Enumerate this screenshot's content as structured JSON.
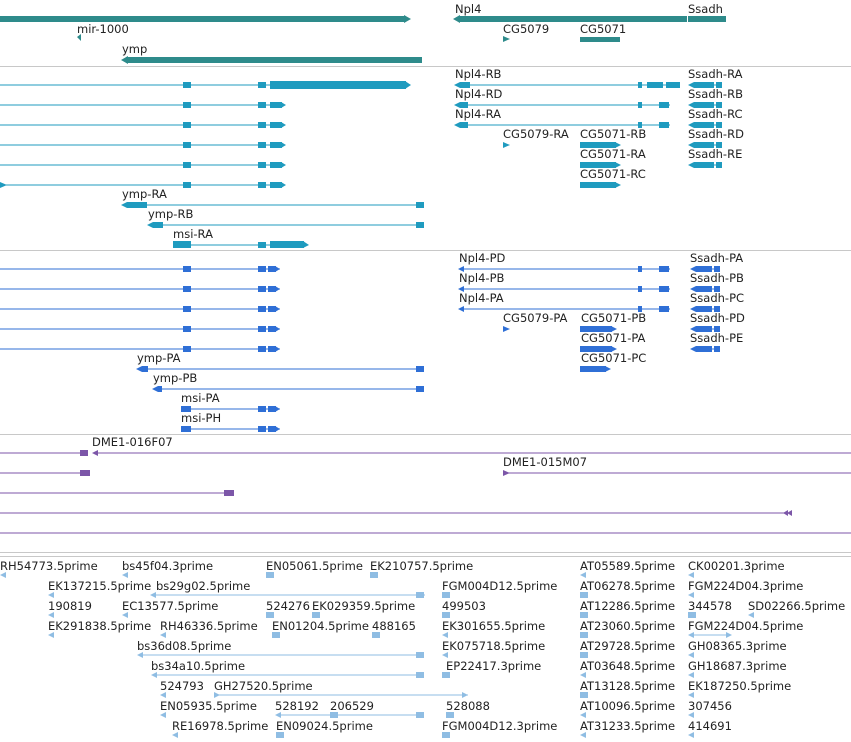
{
  "colors": {
    "gene": "#2e8b8b",
    "mrna": "#1f9bbf",
    "cds": "#2f6fd6",
    "clone": "#7c56a8",
    "est": "#8fbde3",
    "separator": "#c8c8c8",
    "label": "#222222"
  },
  "tracks": {
    "genes": {
      "labels": {
        "npl4": "Npl4",
        "ssadh": "Ssadh",
        "mir1000": "mir-1000",
        "cg5079": "CG5079",
        "cg5071": "CG5071",
        "ymp": "ymp"
      }
    },
    "transcripts": {
      "labels": {
        "npl4_rb": "Npl4-RB",
        "ssadh_ra": "Ssadh-RA",
        "npl4_rd": "Npl4-RD",
        "ssadh_rb": "Ssadh-RB",
        "npl4_ra": "Npl4-RA",
        "ssadh_rc": "Ssadh-RC",
        "cg5079_ra": "CG5079-RA",
        "cg5071_rb": "CG5071-RB",
        "ssadh_rd": "Ssadh-RD",
        "cg5071_ra": "CG5071-RA",
        "ssadh_re": "Ssadh-RE",
        "cg5071_rc": "CG5071-RC",
        "ymp_ra": "ymp-RA",
        "ymp_rb": "ymp-RB",
        "msi_ra": "msi-RA"
      }
    },
    "proteins": {
      "labels": {
        "npl4_pd": "Npl4-PD",
        "ssadh_pa": "Ssadh-PA",
        "npl4_pb": "Npl4-PB",
        "ssadh_pb": "Ssadh-PB",
        "npl4_pa": "Npl4-PA",
        "ssadh_pc": "Ssadh-PC",
        "cg5079_pa": "CG5079-PA",
        "cg5071_pb": "CG5071-PB",
        "ssadh_pd": "Ssadh-PD",
        "cg5071_pa": "CG5071-PA",
        "ssadh_pe": "Ssadh-PE",
        "cg5071_pc": "CG5071-PC",
        "ymp_pa": "ymp-PA",
        "ymp_pb": "ymp-PB",
        "msi_pa": "msi-PA",
        "msi_ph": "msi-PH"
      }
    },
    "clones": {
      "labels": {
        "dme1_016f07": "DME1-016F07",
        "dme1_015m07": "DME1-015M07"
      }
    },
    "ests": {
      "labels": {
        "rh54773": "RH54773.5prime",
        "bs45f04": "bs45f04.3prime",
        "en05061": "EN05061.5prime",
        "ek210757": "EK210757.5prime",
        "at05589": "AT05589.5prime",
        "ck00201": "CK00201.3prime",
        "ek137215": "EK137215.5prime",
        "bs29g02": "bs29g02.5prime",
        "fgm004d12_5": "FGM004D12.5prime",
        "at06278": "AT06278.5prime",
        "fgm224d04_3": "FGM224D04.3prime",
        "n190819": "190819",
        "ec13577": "EC13577.5prime",
        "n524276": "524276",
        "ek029359": "EK029359.5prime",
        "n499503": "499503",
        "at12286": "AT12286.5prime",
        "n344578": "344578",
        "sd02266": "SD02266.5prime",
        "ek291838": "EK291838.5prime",
        "rh46336": "RH46336.5prime",
        "en01204": "EN01204.5prime",
        "n488165": "488165",
        "ek301655": "EK301655.5prime",
        "at23060": "AT23060.5prime",
        "fgm224d04_5": "FGM224D04.5prime",
        "bs36d08": "bs36d08.5prime",
        "ek075718": "EK075718.5prime",
        "at29728": "AT29728.5prime",
        "gh08365": "GH08365.3prime",
        "bs34a10": "bs34a10.5prime",
        "ep22417": "EP22417.3prime",
        "at03648": "AT03648.5prime",
        "gh18687": "GH18687.3prime",
        "n524793": "524793",
        "gh27520": "GH27520.5prime",
        "at13128": "AT13128.5prime",
        "ek187250": "EK187250.5prime",
        "en05935": "EN05935.5prime",
        "n528192": "528192",
        "n206529": "206529",
        "n528088": "528088",
        "at10096": "AT10096.5prime",
        "n307456": "307456",
        "re16978": "RE16978.5prime",
        "en09024": "EN09024.5prime",
        "fgm004d12_3": "FGM004D12.3prime",
        "at31233": "AT31233.5prime",
        "n414691": "414691"
      }
    }
  }
}
